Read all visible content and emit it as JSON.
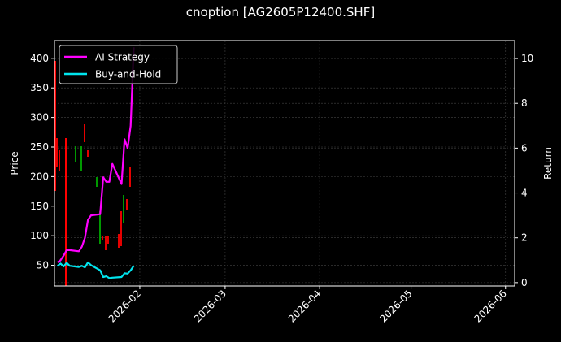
{
  "header": {
    "title": "cnoption [AG2605P12400.SHF]"
  },
  "legend": {
    "items": [
      {
        "label": "AI Strategy",
        "color": "#ff00ff"
      },
      {
        "label": "Buy-and-Hold",
        "color": "#00e5ee"
      }
    ]
  },
  "axes": {
    "ylabel_left": "Price",
    "ylabel_right": "Return",
    "left_ticks": [
      "50",
      "100",
      "150",
      "200",
      "250",
      "300",
      "350",
      "400"
    ],
    "right_ticks": [
      "0",
      "2",
      "4",
      "6",
      "8",
      "10"
    ],
    "x_ticks": [
      "2026-02",
      "2026-03",
      "2026-04",
      "2026-05",
      "2026-06"
    ]
  },
  "colors": {
    "up": "#00aa00",
    "down": "#ff0000",
    "grid": "#444444",
    "background": "#000000"
  },
  "chart_data": {
    "type": "line",
    "title": "cnoption [AG2605P12400.SHF]",
    "xlabel": "",
    "ylabel": "Price",
    "ylabel_secondary": "Return",
    "ylim": [
      15,
      430
    ],
    "ylim_secondary": [
      -0.15,
      10.8
    ],
    "xlim": [
      "2026-01-04",
      "2026-06-04"
    ],
    "grid": true,
    "legend_position": "upper left",
    "candles_note": "OHLC price bars (red=down, green=up) between 2026-01-04 and 2026-01-30",
    "series": [
      {
        "name": "AI Strategy",
        "axis": "right",
        "x": [
          "2026-01-05",
          "2026-01-06",
          "2026-01-07",
          "2026-01-08",
          "2026-01-09",
          "2026-01-12",
          "2026-01-13",
          "2026-01-14",
          "2026-01-15",
          "2026-01-16",
          "2026-01-19",
          "2026-01-20",
          "2026-01-21",
          "2026-01-22",
          "2026-01-23",
          "2026-01-26",
          "2026-01-27",
          "2026-01-28",
          "2026-01-29",
          "2026-01-30"
        ],
        "values": [
          0.9,
          1.0,
          1.2,
          1.45,
          1.45,
          1.4,
          1.6,
          2.0,
          2.8,
          3.0,
          3.05,
          4.7,
          4.5,
          4.5,
          5.3,
          4.4,
          6.4,
          6.0,
          7.0,
          10.5
        ]
      },
      {
        "name": "Buy-and-Hold",
        "axis": "right",
        "x": [
          "2026-01-05",
          "2026-01-06",
          "2026-01-07",
          "2026-01-08",
          "2026-01-09",
          "2026-01-12",
          "2026-01-13",
          "2026-01-14",
          "2026-01-15",
          "2026-01-16",
          "2026-01-19",
          "2026-01-20",
          "2026-01-21",
          "2026-01-22",
          "2026-01-23",
          "2026-01-26",
          "2026-01-27",
          "2026-01-28",
          "2026-01-29",
          "2026-01-30"
        ],
        "values": [
          0.75,
          0.85,
          0.72,
          0.88,
          0.75,
          0.7,
          0.75,
          0.68,
          0.9,
          0.78,
          0.55,
          0.25,
          0.28,
          0.2,
          0.22,
          0.25,
          0.42,
          0.4,
          0.55,
          0.75
        ]
      }
    ]
  }
}
